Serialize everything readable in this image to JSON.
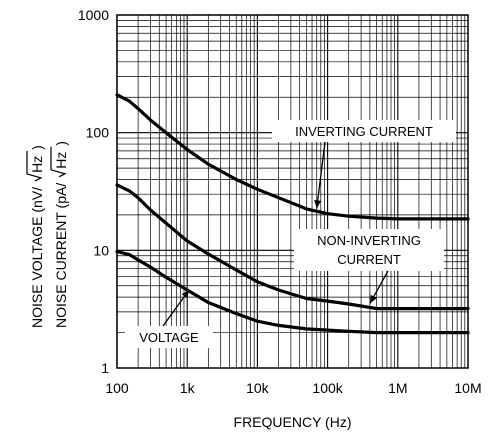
{
  "chart_data": {
    "type": "line",
    "title": "",
    "xlabel": "FREQUENCY (Hz)",
    "ylabel_parts": [
      "NOISE VOLTAGE (nV/",
      "Hz",
      ")",
      "NOISE CURRENT (pA/",
      "Hz",
      ")"
    ],
    "x_scale": "log",
    "y_scale": "log",
    "xlim": [
      100,
      10000000
    ],
    "ylim": [
      1,
      1000
    ],
    "grid": true,
    "x_ticks": [
      {
        "value": 100,
        "label": "100"
      },
      {
        "value": 1000,
        "label": "1k"
      },
      {
        "value": 10000,
        "label": "10k"
      },
      {
        "value": 100000,
        "label": "100k"
      },
      {
        "value": 1000000,
        "label": "1M"
      },
      {
        "value": 10000000,
        "label": "10M"
      }
    ],
    "y_ticks": [
      {
        "value": 1,
        "label": "1"
      },
      {
        "value": 10,
        "label": "10"
      },
      {
        "value": 100,
        "label": "100"
      },
      {
        "value": 1000,
        "label": "1000"
      }
    ],
    "series": [
      {
        "x": [
          100,
          150,
          200,
          300,
          500,
          1000,
          2000,
          5000,
          10000,
          20000,
          50000,
          100000,
          200000,
          500000,
          1000000,
          10000000
        ],
        "y": [
          210,
          185,
          160,
          128,
          100,
          72,
          54,
          40,
          33,
          28,
          22.5,
          20.5,
          19.5,
          18.8,
          18.5,
          18.5
        ]
      },
      {
        "x": [
          100,
          150,
          200,
          300,
          500,
          1000,
          2000,
          5000,
          10000,
          20000,
          50000,
          100000,
          200000,
          500000,
          1000000,
          10000000
        ],
        "y": [
          36,
          32,
          28,
          22,
          17,
          12,
          9.3,
          6.8,
          5.4,
          4.6,
          3.9,
          3.7,
          3.5,
          3.2,
          3.2,
          3.2
        ]
      },
      {
        "x": [
          100,
          150,
          200,
          300,
          500,
          1000,
          2000,
          5000,
          10000,
          20000,
          50000,
          100000,
          200000,
          500000,
          1000000,
          10000000
        ],
        "y": [
          9.8,
          9.2,
          8.3,
          7.2,
          5.9,
          4.6,
          3.6,
          2.9,
          2.5,
          2.3,
          2.15,
          2.1,
          2.05,
          2.0,
          2.0,
          2.0
        ]
      }
    ],
    "annotations": [
      {
        "lines": [
          "INVERTING CURRENT"
        ],
        "arrow_to": [
          70000,
          21
        ]
      },
      {
        "lines": [
          "NON-INVERTING",
          "CURRENT"
        ],
        "arrow_to": [
          400000,
          3.2
        ]
      },
      {
        "lines": [
          "VOLTAGE"
        ],
        "arrow_to": [
          1000,
          5.0
        ]
      }
    ]
  }
}
